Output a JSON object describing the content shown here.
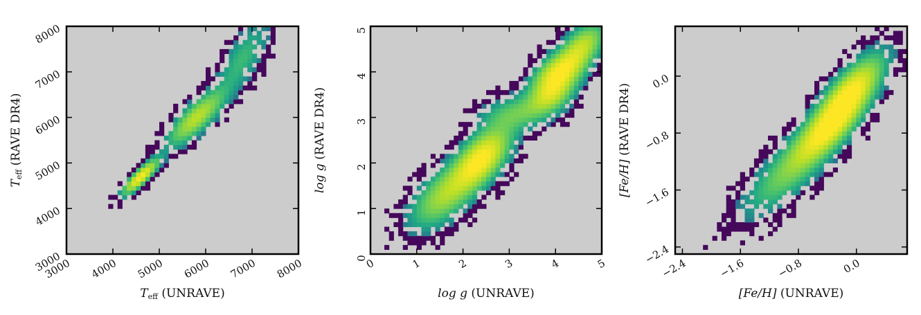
{
  "chart_data": [
    {
      "type": "heatmap",
      "xlabel": {
        "main": "T",
        "sub": "eff",
        "rest": " (UNRAVE)"
      },
      "ylabel": {
        "main": "T",
        "sub": "eff",
        "rest": " (RAVE DR4)"
      },
      "xlim": [
        3000,
        8000
      ],
      "ylim": [
        3000,
        8000
      ],
      "xticks": [
        3000,
        4000,
        5000,
        6000,
        7000,
        8000
      ],
      "xtick_labels": [
        "3000",
        "4000",
        "5000",
        "6000",
        "7000",
        "8000"
      ],
      "yticks": [
        3000,
        4000,
        5000,
        6000,
        7000,
        8000
      ],
      "ytick_labels": [
        "3000",
        "4000",
        "5000",
        "6000",
        "7000",
        "8000"
      ],
      "background": "#cccccc",
      "colormap": "viridis",
      "density_peaks": [
        {
          "x": 4600,
          "y": 4700,
          "weight": 1.0,
          "sx": 230,
          "sy": 230,
          "corr": 0.85
        },
        {
          "x": 5800,
          "y": 6000,
          "weight": 0.65,
          "sx": 380,
          "sy": 380,
          "corr": 0.8
        },
        {
          "x": 6800,
          "y": 7300,
          "weight": 0.25,
          "sx": 350,
          "sy": 500,
          "corr": 0.7
        }
      ]
    },
    {
      "type": "heatmap",
      "xlabel": {
        "main": "log g",
        "sub": "",
        "rest": " (UNRAVE)"
      },
      "ylabel": {
        "main": "log g",
        "sub": "",
        "rest": " (RAVE DR4)"
      },
      "xlim": [
        0,
        5
      ],
      "ylim": [
        0,
        5
      ],
      "xticks": [
        0,
        1,
        2,
        3,
        4,
        5
      ],
      "xtick_labels": [
        "0",
        "1",
        "2",
        "3",
        "4",
        "5"
      ],
      "yticks": [
        0,
        1,
        2,
        3,
        4,
        5
      ],
      "ytick_labels": [
        "0",
        "1",
        "2",
        "3",
        "4",
        "5"
      ],
      "background": "#cccccc",
      "colormap": "viridis",
      "density_peaks": [
        {
          "x": 2.4,
          "y": 2.1,
          "weight": 1.0,
          "sx": 0.38,
          "sy": 0.42,
          "corr": 0.6
        },
        {
          "x": 1.6,
          "y": 1.3,
          "weight": 0.55,
          "sx": 0.45,
          "sy": 0.45,
          "corr": 0.6
        },
        {
          "x": 4.1,
          "y": 4.0,
          "weight": 0.95,
          "sx": 0.35,
          "sy": 0.3,
          "corr": 0.5
        },
        {
          "x": 3.9,
          "y": 3.5,
          "weight": 0.6,
          "sx": 0.3,
          "sy": 0.25,
          "corr": 0.4
        },
        {
          "x": 4.6,
          "y": 4.6,
          "weight": 0.6,
          "sx": 0.3,
          "sy": 0.3,
          "corr": 0.5
        },
        {
          "x": 3.2,
          "y": 3.1,
          "weight": 0.35,
          "sx": 0.5,
          "sy": 0.25,
          "corr": 0.3
        }
      ]
    },
    {
      "type": "heatmap",
      "xlabel": {
        "main": "[Fe/H]",
        "sub": "",
        "rest": " (UNRAVE)"
      },
      "ylabel": {
        "main": "[Fe/H]",
        "sub": "",
        "rest": " (RAVE DR4)"
      },
      "xlim": [
        -2.5,
        0.7
      ],
      "ylim": [
        -2.5,
        0.7
      ],
      "xticks": [
        -2.4,
        -1.6,
        -0.8,
        0.0
      ],
      "xtick_labels": [
        "−2.4",
        "−1.6",
        "−0.8",
        "0.0"
      ],
      "yticks": [
        -2.4,
        -1.6,
        -0.8,
        0.0
      ],
      "ytick_labels": [
        "−2.4",
        "−1.6",
        "−0.8",
        "0.0"
      ],
      "background": "#cccccc",
      "colormap": "viridis",
      "density_peaks": [
        {
          "x": -0.1,
          "y": -0.25,
          "weight": 1.0,
          "sx": 0.28,
          "sy": 0.32,
          "corr": 0.75
        },
        {
          "x": -0.4,
          "y": -0.75,
          "weight": 0.75,
          "sx": 0.3,
          "sy": 0.3,
          "corr": 0.75
        },
        {
          "x": -0.9,
          "y": -1.3,
          "weight": 0.4,
          "sx": 0.4,
          "sy": 0.4,
          "corr": 0.8
        }
      ]
    }
  ]
}
